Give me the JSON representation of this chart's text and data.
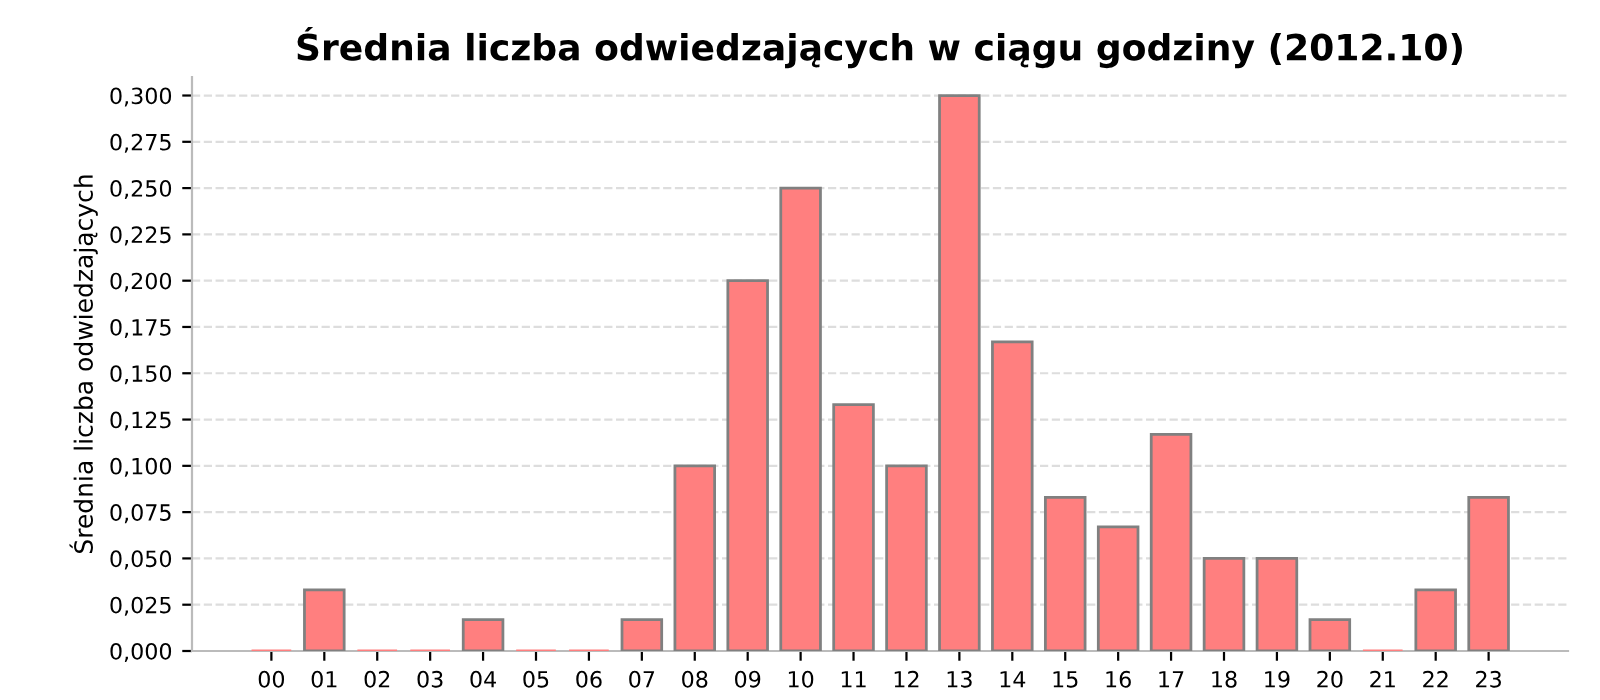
{
  "chart_data": {
    "type": "bar",
    "title": "Średnia liczba odwiedzających w ciągu godziny (2012.10)",
    "ylabel": "Średnia liczba odwiedzających",
    "categories": [
      "00",
      "01",
      "02",
      "03",
      "04",
      "05",
      "06",
      "07",
      "08",
      "09",
      "10",
      "11",
      "12",
      "13",
      "14",
      "15",
      "16",
      "17",
      "18",
      "19",
      "20",
      "21",
      "22",
      "23"
    ],
    "values": [
      0,
      0.033,
      0,
      0,
      0.017,
      0,
      0,
      0.017,
      0.1,
      0.2,
      0.25,
      0.133,
      0.1,
      0.3,
      0.167,
      0.083,
      0.067,
      0.117,
      0.05,
      0.05,
      0.017,
      0,
      0.033,
      0.083
    ],
    "color": "#ff7f7f",
    "ylim": [
      0,
      0.31
    ],
    "yticks": [
      {
        "value": 0,
        "label": "0,000"
      },
      {
        "value": 0.025,
        "label": "0,025"
      },
      {
        "value": 0.05,
        "label": "0,050"
      },
      {
        "value": 0.075,
        "label": "0,075"
      },
      {
        "value": 0.1,
        "label": "0,100"
      },
      {
        "value": 0.125,
        "label": "0,125"
      },
      {
        "value": 0.15,
        "label": "0,150"
      },
      {
        "value": 0.175,
        "label": "0,175"
      },
      {
        "value": 0.2,
        "label": "0,200"
      },
      {
        "value": 0.225,
        "label": "0,225"
      },
      {
        "value": 0.25,
        "label": "0,250"
      },
      {
        "value": 0.275,
        "label": "0,275"
      },
      {
        "value": 0.3,
        "label": "0,300"
      }
    ],
    "grid": "y"
  }
}
